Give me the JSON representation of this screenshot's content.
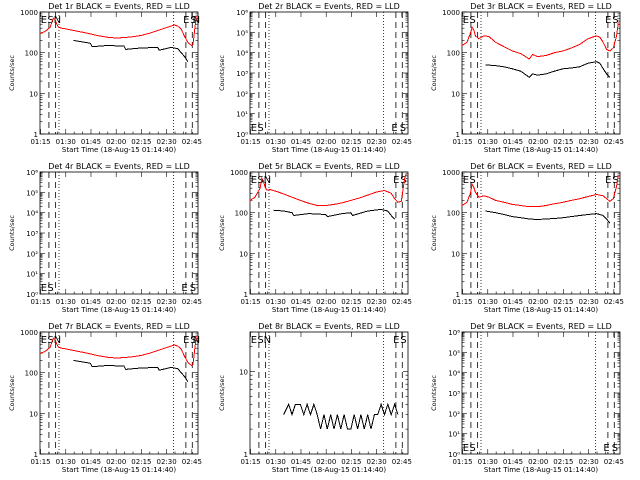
{
  "colors": {
    "events": "#000000",
    "lld": "#ff0000"
  },
  "chart_data": [
    {
      "type": "line",
      "title": "Det 1r BLACK = Events, RED = LLD",
      "xlabel": "Start Time (18-Aug-15 01:14:40)",
      "ylabel": "Counts/sec",
      "yscale": "log",
      "ylim": [
        1,
        1000
      ],
      "yticks": [
        "1",
        "10",
        "100",
        "1000"
      ],
      "xticks": [
        "01:15",
        "01:30",
        "01:45",
        "02:00",
        "02:15",
        "02:30",
        "02:45"
      ],
      "xlim_minutes": [
        0,
        94
      ],
      "markers": [
        {
          "label": "E",
          "minute": 2.3
        },
        {
          "label": "S",
          "minute": 6.3
        },
        {
          "label": "N",
          "minute": 10.3
        }
      ],
      "marker_labels_right": [
        {
          "label": "E",
          "minute": 87
        },
        {
          "label": "S",
          "minute": 91.3
        },
        {
          "label": "N",
          "minute": 93
        }
      ],
      "series": [
        {
          "name": "RED = LLD",
          "color": "#ff0000",
          "x": [
            0,
            3,
            6,
            7,
            8,
            9,
            10,
            11,
            13,
            16,
            20,
            25,
            30,
            35,
            40,
            45,
            50,
            55,
            60,
            65,
            70,
            75,
            78,
            80,
            82,
            84,
            86,
            88,
            90,
            91,
            92,
            93
          ],
          "y": [
            300,
            330,
            420,
            560,
            700,
            650,
            500,
            420,
            400,
            380,
            350,
            320,
            290,
            260,
            240,
            230,
            235,
            245,
            265,
            300,
            350,
            410,
            450,
            480,
            450,
            380,
            250,
            180,
            150,
            160,
            350,
            800
          ]
        },
        {
          "name": "BLACK = Events",
          "color": "#000000",
          "x": [
            20,
            25,
            30,
            31,
            40,
            50,
            51,
            60,
            70,
            71,
            78,
            82,
            84,
            86,
            88
          ],
          "y": [
            200,
            185,
            170,
            140,
            150,
            145,
            120,
            130,
            135,
            115,
            135,
            125,
            100,
            80,
            60
          ]
        }
      ]
    },
    {
      "type": "line",
      "title": "Det 2r BLACK = Events, RED = LLD",
      "xlabel": "Start Time (18-Aug-15 01:14:40)",
      "ylabel": "Counts/sec",
      "yscale": "log",
      "ylim": [
        1,
        1000000
      ],
      "yticks": [
        "10⁰",
        "10¹",
        "10²",
        "10³",
        "10⁴",
        "10⁵",
        "10⁶"
      ],
      "xticks": [
        "01:15",
        "01:30",
        "01:45",
        "02:00",
        "02:15",
        "02:30",
        "02:45"
      ],
      "xlim_minutes": [
        0,
        94
      ],
      "markers_bottom": [
        {
          "label": "E",
          "minute": 2.3
        },
        {
          "label": "S",
          "minute": 6.3
        },
        {
          "label": "E",
          "minute": 86
        },
        {
          "label": "S",
          "minute": 91
        }
      ],
      "series": []
    },
    {
      "type": "line",
      "title": "Det 3r BLACK = Events, RED = LLD",
      "xlabel": "Start Time (18-Aug-15 01:14:40)",
      "ylabel": "Counts/sec",
      "yscale": "log",
      "ylim": [
        1,
        1000
      ],
      "yticks": [
        "1",
        "10",
        "100",
        "1000"
      ],
      "xticks": [
        "01:15",
        "01:30",
        "01:45",
        "02:00",
        "02:15",
        "02:30",
        "02:45"
      ],
      "xlim_minutes": [
        0,
        94
      ],
      "markers": [
        {
          "label": "E",
          "minute": 2.3
        },
        {
          "label": "S",
          "minute": 6.3
        }
      ],
      "marker_labels_right": [
        {
          "label": "E",
          "minute": 87
        },
        {
          "label": "S",
          "minute": 91.3
        }
      ],
      "series": [
        {
          "name": "RED = LLD",
          "color": "#ff0000",
          "x": [
            0,
            3,
            5,
            6,
            7,
            8,
            10,
            13,
            16,
            20,
            25,
            30,
            35,
            40,
            42,
            45,
            50,
            55,
            60,
            65,
            70,
            75,
            80,
            82,
            84,
            86,
            88,
            90,
            92,
            93
          ],
          "y": [
            150,
            180,
            300,
            420,
            360,
            260,
            220,
            260,
            250,
            180,
            140,
            110,
            95,
            70,
            90,
            80,
            85,
            100,
            110,
            130,
            160,
            220,
            260,
            240,
            180,
            120,
            110,
            130,
            260,
            550
          ]
        },
        {
          "name": "BLACK = Events",
          "color": "#000000",
          "x": [
            14,
            20,
            25,
            30,
            35,
            40,
            42,
            45,
            50,
            55,
            60,
            65,
            70,
            75,
            80,
            82,
            84,
            86,
            88
          ],
          "y": [
            50,
            48,
            45,
            40,
            35,
            25,
            30,
            28,
            30,
            35,
            40,
            42,
            45,
            55,
            60,
            55,
            40,
            30,
            25
          ]
        }
      ]
    },
    {
      "type": "line",
      "title": "Det 4r BLACK = Events, RED = LLD",
      "xlabel": "Start Time (18-Aug-15 01:14:40)",
      "ylabel": "Counts/sec",
      "yscale": "log",
      "ylim": [
        1,
        1000000
      ],
      "yticks": [
        "10⁰",
        "10¹",
        "10²",
        "10³",
        "10⁴",
        "10⁵",
        "10⁶"
      ],
      "xticks": [
        "01:15",
        "01:30",
        "01:45",
        "02:00",
        "02:15",
        "02:30",
        "02:45"
      ],
      "xlim_minutes": [
        0,
        94
      ],
      "markers_bottom": [
        {
          "label": "E",
          "minute": 2.3
        },
        {
          "label": "S",
          "minute": 6.3
        },
        {
          "label": "E",
          "minute": 86
        },
        {
          "label": "S",
          "minute": 91
        }
      ],
      "series": []
    },
    {
      "type": "line",
      "title": "Det 5r BLACK = Events, RED = LLD",
      "xlabel": "Start Time (18-Aug-15 01:14:40)",
      "ylabel": "Counts/sec",
      "yscale": "log",
      "ylim": [
        1,
        1000
      ],
      "yticks": [
        "1",
        "10",
        "100",
        "1000"
      ],
      "xticks": [
        "01:15",
        "01:30",
        "01:45",
        "02:00",
        "02:15",
        "02:30",
        "02:45"
      ],
      "xlim_minutes": [
        0,
        94
      ],
      "markers": [
        {
          "label": "E",
          "minute": 2.3
        },
        {
          "label": "S",
          "minute": 6.3
        },
        {
          "label": "N",
          "minute": 10.3
        }
      ],
      "marker_labels_right": [
        {
          "label": "E",
          "minute": 87
        },
        {
          "label": "S",
          "minute": 91.3
        }
      ],
      "series": [
        {
          "name": "RED = LLD",
          "color": "#ff0000",
          "x": [
            0,
            3,
            6,
            7,
            8,
            9,
            10,
            12,
            16,
            20,
            25,
            30,
            35,
            40,
            45,
            50,
            55,
            60,
            65,
            70,
            75,
            80,
            84,
            86,
            88,
            90,
            91,
            92,
            93
          ],
          "y": [
            200,
            240,
            400,
            700,
            600,
            420,
            360,
            370,
            330,
            290,
            240,
            200,
            170,
            150,
            150,
            160,
            175,
            200,
            230,
            270,
            320,
            350,
            300,
            220,
            180,
            190,
            360,
            700,
            900
          ]
        },
        {
          "name": "BLACK = Events",
          "color": "#000000",
          "x": [
            14,
            20,
            25,
            26,
            35,
            45,
            46,
            55,
            60,
            61,
            70,
            78,
            82,
            84,
            86
          ],
          "y": [
            115,
            110,
            100,
            85,
            95,
            90,
            80,
            95,
            100,
            85,
            110,
            120,
            110,
            85,
            70
          ]
        }
      ]
    },
    {
      "type": "line",
      "title": "Det 6r BLACK = Events, RED = LLD",
      "xlabel": "Start Time (18-Aug-15 01:14:40)",
      "ylabel": "Counts/sec",
      "yscale": "log",
      "ylim": [
        1,
        1000
      ],
      "yticks": [
        "1",
        "10",
        "100",
        "1000"
      ],
      "xticks": [
        "01:15",
        "01:30",
        "01:45",
        "02:00",
        "02:15",
        "02:30",
        "02:45"
      ],
      "xlim_minutes": [
        0,
        94
      ],
      "markers": [
        {
          "label": "E",
          "minute": 2.3
        },
        {
          "label": "S",
          "minute": 6.3
        }
      ],
      "marker_labels_right": [
        {
          "label": "E",
          "minute": 87
        },
        {
          "label": "S",
          "minute": 91.3
        }
      ],
      "series": [
        {
          "name": "RED = LLD",
          "color": "#ff0000",
          "x": [
            0,
            3,
            5,
            6,
            7,
            8,
            10,
            13,
            16,
            20,
            25,
            30,
            35,
            40,
            45,
            50,
            55,
            60,
            65,
            70,
            75,
            80,
            84,
            86,
            88,
            90,
            92,
            93
          ],
          "y": [
            150,
            180,
            300,
            500,
            420,
            320,
            240,
            260,
            240,
            200,
            180,
            160,
            150,
            140,
            140,
            150,
            165,
            180,
            200,
            220,
            250,
            280,
            260,
            220,
            190,
            220,
            450,
            850
          ]
        },
        {
          "name": "BLACK = Events",
          "color": "#000000",
          "x": [
            14,
            20,
            25,
            30,
            35,
            40,
            45,
            50,
            55,
            60,
            65,
            70,
            75,
            80,
            84,
            86,
            88
          ],
          "y": [
            110,
            100,
            90,
            80,
            75,
            70,
            68,
            70,
            72,
            75,
            80,
            85,
            90,
            95,
            85,
            70,
            55
          ]
        }
      ]
    },
    {
      "type": "line",
      "title": "Det 7r BLACK = Events, RED = LLD",
      "xlabel": "Start Time (18-Aug-15 01:14:40)",
      "ylabel": "Counts/sec",
      "yscale": "log",
      "ylim": [
        1,
        1000
      ],
      "yticks": [
        "1",
        "10",
        "100",
        "1000"
      ],
      "xticks": [
        "01:15",
        "01:30",
        "01:45",
        "02:00",
        "02:15",
        "02:30",
        "02:45"
      ],
      "xlim_minutes": [
        0,
        94
      ],
      "markers": [
        {
          "label": "E",
          "minute": 2.3
        },
        {
          "label": "S",
          "minute": 6.3
        },
        {
          "label": "N",
          "minute": 10.3
        }
      ],
      "marker_labels_right": [
        {
          "label": "E",
          "minute": 87
        },
        {
          "label": "S",
          "minute": 91.3
        },
        {
          "label": "N",
          "minute": 93
        }
      ],
      "series": [
        {
          "name": "RED = LLD",
          "color": "#ff0000",
          "x": [
            0,
            3,
            6,
            7,
            8,
            9,
            10,
            11,
            13,
            16,
            20,
            25,
            30,
            35,
            40,
            45,
            50,
            55,
            60,
            65,
            70,
            75,
            78,
            80,
            82,
            84,
            86,
            88,
            90,
            91,
            92,
            93
          ],
          "y": [
            300,
            330,
            420,
            560,
            700,
            650,
            500,
            420,
            400,
            380,
            350,
            320,
            290,
            260,
            240,
            230,
            235,
            245,
            265,
            300,
            350,
            410,
            450,
            480,
            450,
            380,
            250,
            180,
            150,
            160,
            350,
            800
          ]
        },
        {
          "name": "BLACK = Events",
          "color": "#000000",
          "x": [
            20,
            25,
            30,
            31,
            40,
            50,
            51,
            60,
            70,
            71,
            78,
            82,
            84,
            86,
            88
          ],
          "y": [
            200,
            185,
            170,
            140,
            150,
            145,
            120,
            130,
            135,
            115,
            135,
            125,
            100,
            80,
            60
          ]
        }
      ]
    },
    {
      "type": "line",
      "title": "Det 8r BLACK = Events, RED = LLD",
      "xlabel": "Start Time (18-Aug-15 01:14:40)",
      "ylabel": "Counts/sec",
      "yscale": "log",
      "ylim": [
        1,
        30
      ],
      "yticks": [
        "1",
        "10"
      ],
      "xticks": [
        "01:15",
        "01:30",
        "01:45",
        "02:00",
        "02:15",
        "02:30",
        "02:45"
      ],
      "xlim_minutes": [
        0,
        94
      ],
      "markers": [
        {
          "label": "E",
          "minute": 2.3
        },
        {
          "label": "S",
          "minute": 6.3
        },
        {
          "label": "N",
          "minute": 10.3
        }
      ],
      "marker_labels_right": [
        {
          "label": "E",
          "minute": 87
        },
        {
          "label": "S",
          "minute": 91.3
        }
      ],
      "series": [
        {
          "name": "BLACK = Events",
          "color": "#000000",
          "x": [
            20,
            23,
            25,
            27,
            30,
            32,
            34,
            36,
            38,
            40,
            42,
            44,
            46,
            48,
            50,
            52,
            54,
            56,
            58,
            60,
            62,
            64,
            66,
            68,
            70,
            72,
            74,
            76,
            78,
            80,
            82,
            84,
            86,
            88
          ],
          "y": [
            3,
            4,
            3,
            4,
            4,
            3,
            4,
            3,
            4,
            3,
            2,
            3,
            2,
            3,
            2,
            3,
            2,
            3,
            2,
            2,
            3,
            2,
            3,
            2,
            3,
            2,
            3,
            3,
            4,
            3,
            4,
            3,
            4,
            3
          ]
        }
      ]
    },
    {
      "type": "line",
      "title": "Det 9r BLACK = Events, RED = LLD",
      "xlabel": "Start Time (18-Aug-15 01:14:40)",
      "ylabel": "Counts/sec",
      "yscale": "log",
      "ylim": [
        1,
        1000000
      ],
      "yticks": [
        "10⁰",
        "10¹",
        "10²",
        "10³",
        "10⁴",
        "10⁵",
        "10⁶"
      ],
      "xticks": [
        "01:15",
        "01:30",
        "01:45",
        "02:00",
        "02:15",
        "02:30",
        "02:45"
      ],
      "xlim_minutes": [
        0,
        94
      ],
      "markers_bottom": [
        {
          "label": "E",
          "minute": 2.3
        },
        {
          "label": "S",
          "minute": 6.3
        },
        {
          "label": "E",
          "minute": 86
        },
        {
          "label": "S",
          "minute": 91
        }
      ],
      "series": []
    }
  ]
}
